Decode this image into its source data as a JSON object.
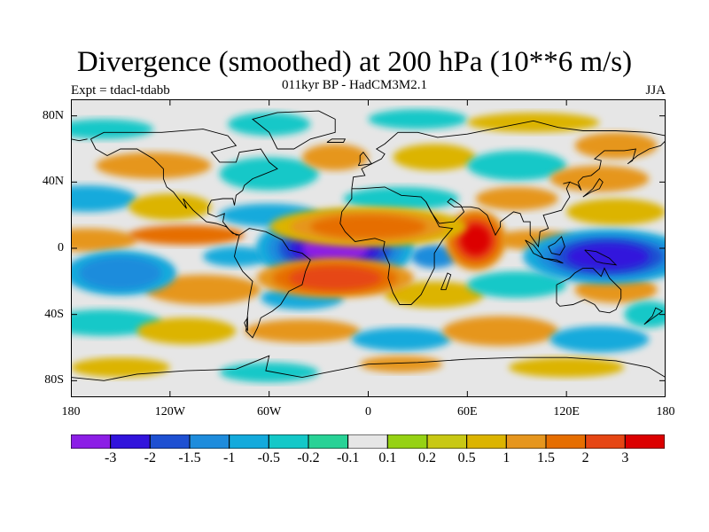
{
  "title": "Divergence (smoothed) at 200 hPa (10**6 m/s)",
  "subtitle": "011kyr BP - HadCM3M2.1",
  "experiment": "Expt = tdacl-tdabb",
  "season": "JJA",
  "map": {
    "projection": "cylindrical equidistant",
    "lon_range": [
      -180,
      180
    ],
    "lat_range": [
      -90,
      90
    ],
    "lat_ticks": [
      {
        "label": "80N",
        "lat": 80
      },
      {
        "label": "40N",
        "lat": 40
      },
      {
        "label": "0",
        "lat": 0
      },
      {
        "label": "40S",
        "lat": -40
      },
      {
        "label": "80S",
        "lat": -80
      }
    ],
    "lon_ticks": [
      {
        "label": "180",
        "lon": -180
      },
      {
        "label": "120W",
        "lon": -120
      },
      {
        "label": "60W",
        "lon": -60
      },
      {
        "label": "0",
        "lon": 0
      },
      {
        "label": "60E",
        "lon": 60
      },
      {
        "label": "120E",
        "lon": 120
      },
      {
        "label": "180",
        "lon": 180
      }
    ],
    "background_color": "#e6e6e6"
  },
  "colorbar": {
    "colors": [
      "#8c1ee6",
      "#3214dc",
      "#1e50d2",
      "#1e8cdc",
      "#14aadc",
      "#14c8c8",
      "#28d296",
      "#e6e6e6",
      "#96d214",
      "#c8c814",
      "#dcb400",
      "#e6961e",
      "#e66e00",
      "#e64614",
      "#dc0000"
    ],
    "labels": [
      "-3",
      "-2",
      "-1.5",
      "-1",
      "-0.5",
      "-0.2",
      "-0.1",
      "0.1",
      "0.2",
      "0.5",
      "1",
      "1.5",
      "2",
      "3"
    ]
  },
  "features": [
    {
      "name": "equatorial-atlantic-convergence",
      "lon": -20,
      "lat": 0,
      "rx": 20,
      "ry": 9,
      "level": 0,
      "w": 5
    },
    {
      "name": "west-pacific-convergence",
      "lon": 145,
      "lat": -5,
      "rx": 25,
      "ry": 8,
      "level": 1,
      "w": 4
    },
    {
      "name": "arabian-sea-divergence",
      "lon": 65,
      "lat": 5,
      "rx": 9,
      "ry": 9,
      "level": 14,
      "w": 4
    },
    {
      "name": "south-atlantic-divergence",
      "lon": -20,
      "lat": -18,
      "rx": 28,
      "ry": 7,
      "level": 13,
      "w": 3
    },
    {
      "name": "equatorial-africa-divergence",
      "lon": 0,
      "lat": 13,
      "rx": 35,
      "ry": 7,
      "level": 12,
      "w": 3
    },
    {
      "name": "south-pacific-convergence",
      "lon": -150,
      "lat": -15,
      "rx": 25,
      "ry": 10,
      "level": 3,
      "w": 2
    }
  ]
}
